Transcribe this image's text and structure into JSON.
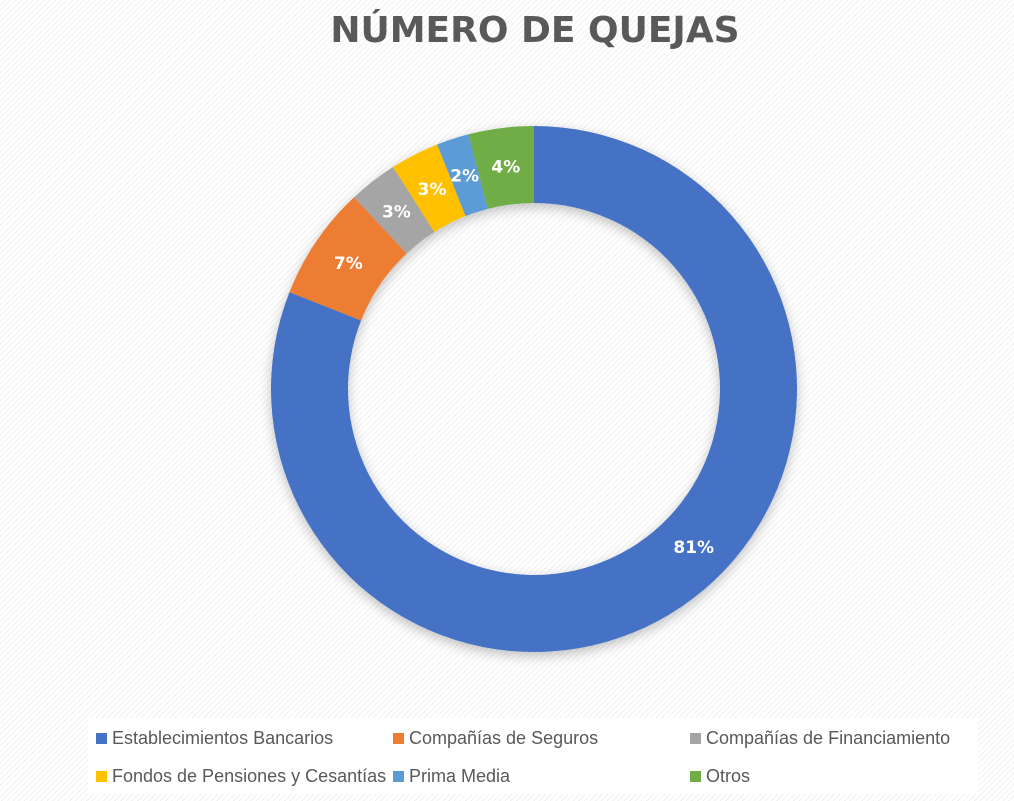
{
  "chart_data": {
    "type": "pie",
    "subtype": "donut",
    "title": "NÚMERO DE QUEJAS",
    "legend_position": "bottom",
    "slices": [
      {
        "name": "Establecimientos Bancarios",
        "value": 81,
        "label": "81%",
        "color": "#4472C4"
      },
      {
        "name": "Compañías de Seguros",
        "value": 7,
        "label": "7%",
        "color": "#ED7D31"
      },
      {
        "name": "Compañías de Financiamiento",
        "value": 3,
        "label": "3%",
        "color": "#A5A5A5"
      },
      {
        "name": "Fondos de Pensiones y Cesantías",
        "value": 3,
        "label": "3%",
        "color": "#FFC000"
      },
      {
        "name": "Prima Media",
        "value": 2,
        "label": "2%",
        "color": "#5B9BD5"
      },
      {
        "name": "Otros",
        "value": 4,
        "label": "4%",
        "color": "#70AD47"
      }
    ]
  }
}
